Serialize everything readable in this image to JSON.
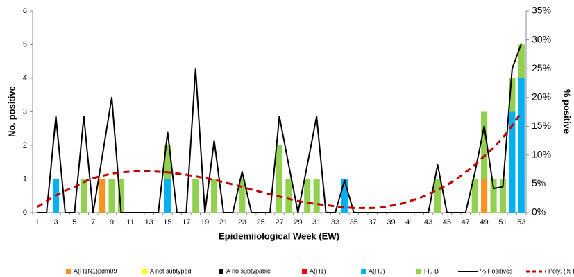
{
  "chart_data": {
    "type": "bar",
    "stacked": true,
    "x_label": "Epidemiiological Week (EW)",
    "y_label": "No. positive",
    "y2_label": "% positive",
    "categories": [
      1,
      null,
      3,
      null,
      5,
      null,
      7,
      null,
      9,
      null,
      11,
      null,
      13,
      null,
      15,
      null,
      17,
      null,
      19,
      null,
      21,
      null,
      23,
      null,
      25,
      null,
      27,
      null,
      29,
      null,
      31,
      null,
      33,
      null,
      35,
      null,
      37,
      null,
      39,
      null,
      41,
      null,
      43,
      null,
      45,
      null,
      47,
      null,
      49,
      null,
      51,
      null,
      53
    ],
    "ylim": [
      0,
      6
    ],
    "yticks": [
      0,
      1,
      2,
      3,
      4,
      5,
      6
    ],
    "y2lim": [
      0,
      35
    ],
    "y2ticks": [
      {
        "value": 0,
        "label": "0%"
      },
      {
        "value": 5,
        "label": "5%"
      },
      {
        "value": 10,
        "label": "10%"
      },
      {
        "value": 15,
        "label": "15%"
      },
      {
        "value": 20,
        "label": "20%"
      },
      {
        "value": 25,
        "label": "25%"
      },
      {
        "value": 30,
        "label": "30%"
      },
      {
        "value": 35,
        "label": "35%"
      }
    ],
    "legend": "bottom",
    "series": [
      {
        "name": "A(H1N1)pdm09",
        "color": "#f7931e",
        "values": [
          0,
          0,
          0,
          0,
          0,
          0,
          0,
          1,
          0,
          0,
          0,
          0,
          0,
          0,
          0,
          0,
          0,
          0,
          0,
          0,
          0,
          0,
          0,
          0,
          0,
          0,
          0,
          0,
          0,
          0,
          0,
          0,
          0,
          0,
          0,
          0,
          0,
          0,
          0,
          0,
          0,
          0,
          0,
          0,
          0,
          0,
          0,
          0,
          1,
          0,
          0,
          0,
          0
        ]
      },
      {
        "name": "A not subtyped",
        "color": "#ffff00",
        "values": [
          0,
          0,
          0,
          0,
          0,
          0,
          0,
          0,
          0,
          0,
          0,
          0,
          0,
          0,
          0,
          0,
          0,
          0,
          0,
          0,
          0,
          0,
          0,
          0,
          0,
          0,
          0,
          0,
          0,
          0,
          0,
          0,
          0,
          0,
          0,
          0,
          0,
          0,
          0,
          0,
          0,
          0,
          0,
          0,
          0,
          0,
          0,
          0,
          0,
          0,
          0,
          0,
          0
        ]
      },
      {
        "name": "A no subtypable",
        "color": "#000000",
        "values": [
          0,
          0,
          0,
          0,
          0,
          0,
          0,
          0,
          0,
          0,
          0,
          0,
          0,
          0,
          0,
          0,
          0,
          0,
          0,
          0,
          0,
          0,
          0,
          0,
          0,
          0,
          0,
          0,
          0,
          0,
          0,
          0,
          0,
          0,
          0,
          0,
          0,
          0,
          0,
          0,
          0,
          0,
          0,
          0,
          0,
          0,
          0,
          0,
          0,
          0,
          0,
          0,
          0
        ]
      },
      {
        "name": "A(H1)",
        "color": "#ff0000",
        "values": [
          0,
          0,
          0,
          0,
          0,
          0,
          0,
          0,
          0,
          0,
          0,
          0,
          0,
          0,
          0,
          0,
          0,
          0,
          0,
          0,
          0,
          0,
          0,
          0,
          0,
          0,
          0,
          0,
          0,
          0,
          0,
          0,
          0,
          0,
          0,
          0,
          0,
          0,
          0,
          0,
          0,
          0,
          0,
          0,
          0,
          0,
          0,
          0,
          0,
          0,
          0,
          0,
          0
        ]
      },
      {
        "name": "A(H3)",
        "color": "#00b0f0",
        "values": [
          0,
          0,
          1,
          0,
          0,
          0,
          0,
          0,
          0,
          0,
          0,
          0,
          0,
          0,
          1,
          0,
          0,
          0,
          0,
          0,
          0,
          0,
          0,
          0,
          0,
          0,
          0,
          0,
          0,
          0,
          0,
          0,
          0,
          1,
          0,
          0,
          0,
          0,
          0,
          0,
          0,
          0,
          0,
          0,
          0,
          0,
          0,
          0,
          0,
          0,
          0,
          3,
          4
        ]
      },
      {
        "name": "Flu  B",
        "color": "#92d050",
        "values": [
          0,
          0,
          0,
          0,
          0,
          1,
          0,
          0,
          1,
          1,
          0,
          0,
          0,
          0,
          1,
          0,
          0,
          1,
          0,
          1,
          0,
          0,
          1,
          0,
          0,
          0,
          2,
          1,
          0,
          1,
          1,
          0,
          0,
          0,
          0,
          0,
          0,
          0,
          0,
          0,
          0,
          0,
          0,
          1,
          0,
          0,
          0,
          1,
          2,
          1,
          1,
          1,
          1
        ]
      },
      {
        "name": "% Positives",
        "type": "line",
        "axis": "y2",
        "color": "#000000",
        "line_style": "solid",
        "values": [
          0,
          0,
          16.7,
          0,
          0,
          16.7,
          0,
          10,
          20,
          0,
          0,
          0,
          0,
          0,
          14,
          0,
          0,
          25,
          0,
          12.5,
          0,
          0,
          7.1,
          0,
          0,
          0,
          16.7,
          8.3,
          0,
          8.3,
          16.7,
          0,
          0,
          5.6,
          0,
          0,
          0,
          0,
          0,
          0,
          0,
          0,
          0,
          8.3,
          0,
          0,
          0,
          7,
          15,
          4.2,
          4.5,
          25,
          29.4
        ]
      },
      {
        "name": "Poly. (% Positives)",
        "type": "line",
        "axis": "y2",
        "color": "#c00000",
        "line_style": "dashed",
        "values": [
          1,
          2,
          3,
          3.8,
          4.5,
          5.3,
          6,
          6.4,
          6.8,
          7,
          7.1,
          7.2,
          7.2,
          7.1,
          7,
          6.8,
          6.6,
          6.3,
          6,
          5.7,
          5.3,
          4.9,
          4.5,
          4,
          3.6,
          3.2,
          2.8,
          2.4,
          2,
          1.7,
          1.5,
          1.3,
          1.1,
          0.9,
          0.8,
          0.8,
          0.8,
          0.9,
          1.2,
          1.5,
          2,
          2.5,
          3.2,
          4,
          4.8,
          5.8,
          7,
          8.3,
          9.8,
          11.3,
          13,
          15.1,
          17.4
        ]
      }
    ]
  }
}
